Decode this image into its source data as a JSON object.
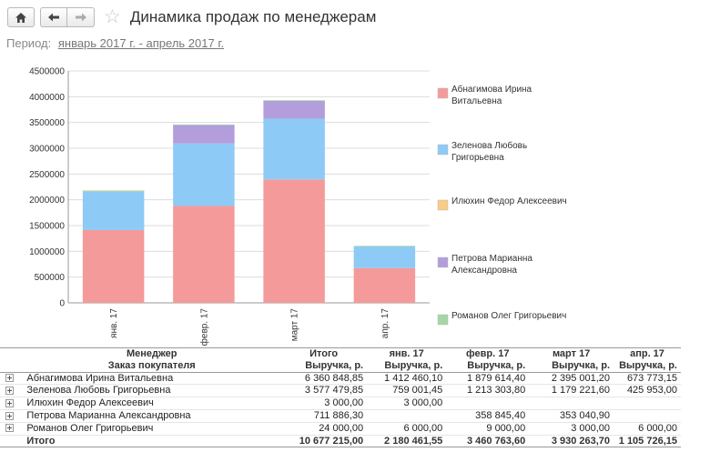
{
  "title": "Динамика продаж по менеджерам",
  "period": {
    "label": "Период:",
    "value": "январь 2017 г. - апрель 2017 г."
  },
  "icons": {
    "home": "home-icon",
    "back": "arrow-left-icon",
    "forward": "arrow-right-icon",
    "favorite": "star-icon"
  },
  "chart_data": {
    "type": "bar",
    "stacked": true,
    "categories": [
      "янв. 17",
      "февр. 17",
      "март 17",
      "апр. 17"
    ],
    "ylim": [
      0,
      4500000
    ],
    "yticks": [
      0,
      500000,
      1000000,
      1500000,
      2000000,
      2500000,
      3000000,
      3500000,
      4000000,
      4500000
    ],
    "grid": true,
    "legend_position": "right",
    "series": [
      {
        "name": "Абнагимова Ирина Витальевна",
        "color": "#f49a9a",
        "values": [
          1412460.1,
          1879614.4,
          2395001.2,
          673773.15
        ]
      },
      {
        "name": "Зеленова Любовь Григорьевна",
        "color": "#8ecaf6",
        "values": [
          759001.45,
          1213303.8,
          1179221.6,
          425953.0
        ]
      },
      {
        "name": "Илюхин Федор Алексеевич",
        "color": "#f8cc84",
        "values": [
          3000.0,
          0,
          0,
          0
        ]
      },
      {
        "name": "Петрова Марианна Александровна",
        "color": "#b39ddb",
        "values": [
          0,
          358845.4,
          353040.9,
          0
        ]
      },
      {
        "name": "Романов Олег Григорьевич",
        "color": "#a5d6a7",
        "values": [
          6000.0,
          9000.0,
          3000.0,
          6000.0
        ]
      }
    ]
  },
  "legend": [
    {
      "lines": [
        "Абнагимова Ирина",
        "Витальевна"
      ],
      "color": "#f49a9a"
    },
    {
      "lines": [
        "Зеленова Любовь",
        "Григорьевна"
      ],
      "color": "#8ecaf6"
    },
    {
      "lines": [
        "Илюхин Федор Алексеевич"
      ],
      "color": "#f8cc84"
    },
    {
      "lines": [
        "Петрова Марианна",
        "Александровна"
      ],
      "color": "#b39ddb"
    },
    {
      "lines": [
        "Романов Олег Григорьевич"
      ],
      "color": "#a5d6a7"
    }
  ],
  "table": {
    "header1": [
      "Менеджер",
      "Итого",
      "янв. 17",
      "февр. 17",
      "март 17",
      "апр. 17"
    ],
    "header2": [
      "Заказ покупателя",
      "Выручка, р.",
      "Выручка, р.",
      "Выручка, р.",
      "Выручка, р.",
      "Выручка, р."
    ],
    "rows": [
      [
        "Абнагимова Ирина Витальевна",
        "6 360 848,85",
        "1 412 460,10",
        "1 879 614,40",
        "2 395 001,20",
        "673 773,15"
      ],
      [
        "Зеленова Любовь Григорьевна",
        "3 577 479,85",
        "759 001,45",
        "1 213 303,80",
        "1 179 221,60",
        "425 953,00"
      ],
      [
        "Илюхин Федор Алексеевич",
        "3 000,00",
        "3 000,00",
        "",
        "",
        ""
      ],
      [
        "Петрова Марианна Александровна",
        "711 886,30",
        "",
        "358 845,40",
        "353 040,90",
        ""
      ],
      [
        "Романов Олег Григорьевич",
        "24 000,00",
        "6 000,00",
        "9 000,00",
        "3 000,00",
        "6 000,00"
      ]
    ],
    "total": [
      "Итого",
      "10 677 215,00",
      "2 180 461,55",
      "3 460 763,60",
      "3 930 263,70",
      "1 105 726,15"
    ]
  }
}
